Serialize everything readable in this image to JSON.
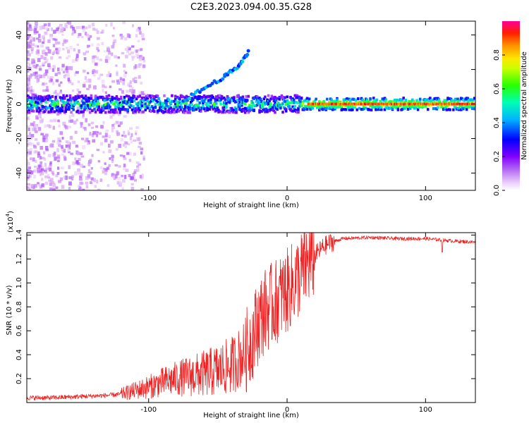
{
  "title": "C2E3.2023.094.00.35.G28",
  "chart_data": [
    {
      "type": "heatmap",
      "xlabel": "Height of straight line (km)",
      "ylabel": "Frequency (Hz)",
      "xlim": [
        -188,
        136
      ],
      "ylim": [
        -50,
        48
      ],
      "xticks": [
        -100,
        0,
        100
      ],
      "yticks": [
        -40,
        -20,
        0,
        20,
        40
      ],
      "colorbar": {
        "label": "Normalized spectral amplitude",
        "range": [
          0,
          1
        ],
        "ticks": [
          "0.0",
          "0.2",
          "0.4",
          "0.6",
          "0.8"
        ],
        "colors": [
          "#ffffff",
          "#d49cf5",
          "#8000ff",
          "#0000ff",
          "#00c0ff",
          "#00ffa0",
          "#40ff00",
          "#ffff00",
          "#ff8000",
          "#ff0000",
          "#ff00a0"
        ]
      },
      "features": {
        "main_band_center_hz": 0,
        "upper_branch": [
          [
            -75,
            2
          ],
          [
            -60,
            9
          ],
          [
            -45,
            16
          ],
          [
            -35,
            22
          ],
          [
            -28,
            30
          ]
        ]
      }
    },
    {
      "type": "line",
      "xlabel": "Height of straight line (km)",
      "ylabel": "SNR (10 * v/v)",
      "yscale_label": "(x10",
      "yscale_exp": "4",
      "yscale_close": ")",
      "xlim": [
        -188,
        136
      ],
      "ylim": [
        0,
        1.42
      ],
      "xticks": [
        -100,
        0,
        100
      ],
      "yticks": [
        "0.2",
        "0.4",
        "0.6",
        "0.8",
        "1.0",
        "1.2",
        "1.4"
      ],
      "color": "#ee2222",
      "series": [
        {
          "x": [
            -188,
            -170,
            -150,
            -130,
            -120,
            -110,
            -100,
            -90,
            -80,
            -70,
            -60,
            -50,
            -40,
            -30,
            -25,
            -20,
            -15,
            -10,
            -5,
            0,
            5,
            10,
            15,
            20,
            25,
            30,
            40,
            60,
            80,
            100,
            110,
            120,
            136
          ],
          "values": [
            0.04,
            0.04,
            0.05,
            0.06,
            0.07,
            0.1,
            0.13,
            0.17,
            0.2,
            0.22,
            0.24,
            0.27,
            0.31,
            0.42,
            0.55,
            0.7,
            0.78,
            0.82,
            0.88,
            0.93,
            1.0,
            1.08,
            1.16,
            1.23,
            1.29,
            1.33,
            1.37,
            1.38,
            1.37,
            1.37,
            1.36,
            1.35,
            1.34
          ]
        }
      ]
    }
  ]
}
